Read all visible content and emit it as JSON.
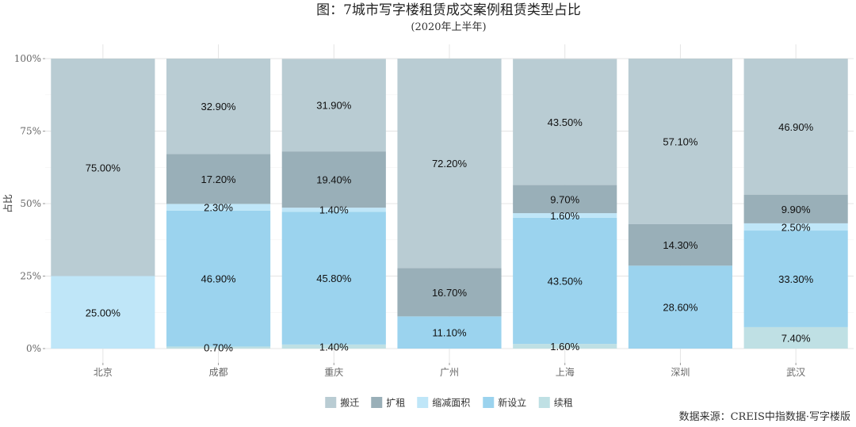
{
  "chart_data": {
    "type": "bar",
    "stacked": true,
    "title": "图：7城市写字楼租赁成交案例租赁类型占比",
    "subtitle": "(2020年上半年)",
    "ylabel": "占比",
    "xlabel": "",
    "ylim": [
      0,
      100
    ],
    "yticks": [
      "0%",
      "25%",
      "50%",
      "75%",
      "100%"
    ],
    "ytick_values": [
      0,
      25,
      50,
      75,
      100
    ],
    "grid": true,
    "legend_position": "bottom",
    "categories": [
      "北京",
      "成都",
      "重庆",
      "广州",
      "上海",
      "深圳",
      "武汉"
    ],
    "series": [
      {
        "name": "续租",
        "color": "#bfe0e4",
        "values": [
          0,
          0.7,
          1.4,
          0,
          1.6,
          0,
          7.4
        ],
        "labels": [
          "",
          "0.70%",
          "1.40%",
          "",
          "1.60%",
          "",
          "7.40%"
        ]
      },
      {
        "name": "新设立",
        "color": "#9bd3ee",
        "values": [
          0,
          46.9,
          45.8,
          11.1,
          43.5,
          28.6,
          33.3
        ],
        "labels": [
          "",
          "46.90%",
          "45.80%",
          "11.10%",
          "43.50%",
          "28.60%",
          "33.30%"
        ]
      },
      {
        "name": "缩减面积",
        "color": "#bfe6f8",
        "values": [
          25.0,
          2.3,
          1.4,
          0,
          1.6,
          0,
          2.5
        ],
        "labels": [
          "25.00%",
          "2.30%",
          "1.40%",
          "",
          "1.60%",
          "",
          "2.50%"
        ]
      },
      {
        "name": "扩租",
        "color": "#99afb8",
        "values": [
          0,
          17.2,
          19.4,
          16.7,
          9.7,
          14.3,
          9.9
        ],
        "labels": [
          "",
          "17.20%",
          "19.40%",
          "16.70%",
          "9.70%",
          "14.30%",
          "9.90%"
        ]
      },
      {
        "name": "搬迁",
        "color": "#b9ccd3",
        "values": [
          75.0,
          32.9,
          31.9,
          72.2,
          43.5,
          57.1,
          46.9
        ],
        "labels": [
          "75.00%",
          "32.90%",
          "31.90%",
          "72.20%",
          "43.50%",
          "57.10%",
          "46.90%"
        ]
      }
    ],
    "legend_order": [
      "搬迁",
      "扩租",
      "缩减面积",
      "新设立",
      "续租"
    ]
  },
  "source": "数据来源：CREIS中指数据·写字楼版"
}
